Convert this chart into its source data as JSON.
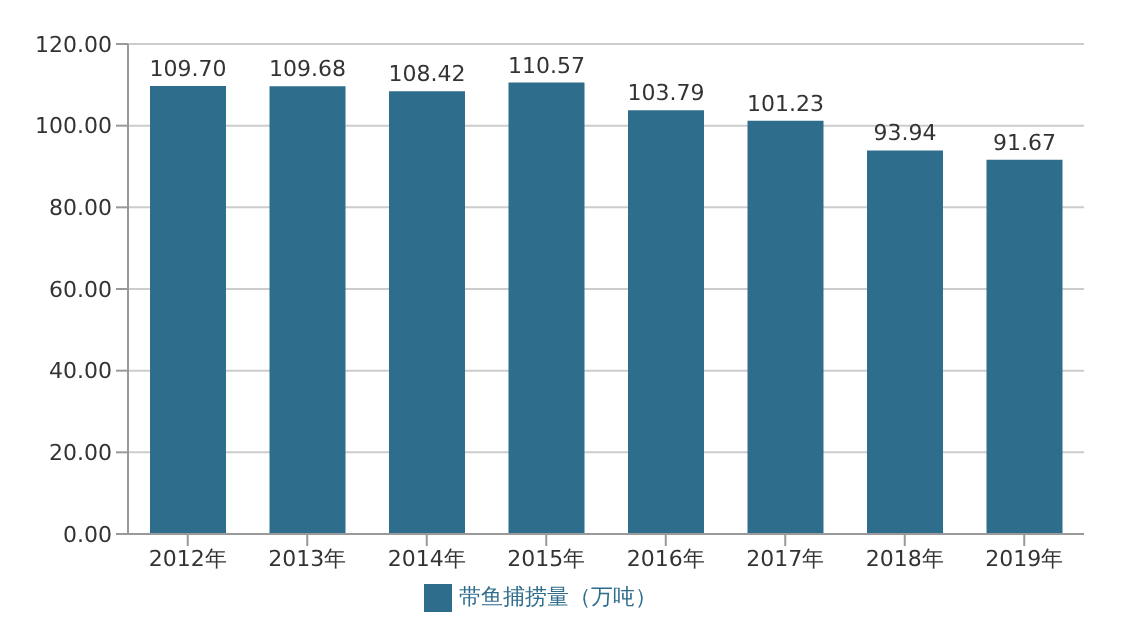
{
  "chart_data": {
    "type": "bar",
    "categories": [
      "2012年",
      "2013年",
      "2014年",
      "2015年",
      "2016年",
      "2017年",
      "2018年",
      "2019年"
    ],
    "series": [
      {
        "name": "带鱼捕捞量（万吨）",
        "color": "#2f6d8c",
        "values": [
          109.7,
          109.68,
          108.42,
          110.57,
          103.79,
          101.23,
          93.94,
          91.67
        ],
        "value_labels": [
          "109.70",
          "109.68",
          "108.42",
          "110.57",
          "103.79",
          "101.23",
          "93.94",
          "91.67"
        ]
      }
    ],
    "ylim": [
      0,
      120
    ],
    "yticks": [
      {
        "value": 0,
        "label": "0.00"
      },
      {
        "value": 20,
        "label": "20.00"
      },
      {
        "value": 40,
        "label": "40.00"
      },
      {
        "value": 60,
        "label": "60.00"
      },
      {
        "value": 80,
        "label": "80.00"
      },
      {
        "value": 100,
        "label": "100.00"
      },
      {
        "value": 120,
        "label": "120.00"
      }
    ],
    "grid": "y",
    "legend": "bottom"
  }
}
